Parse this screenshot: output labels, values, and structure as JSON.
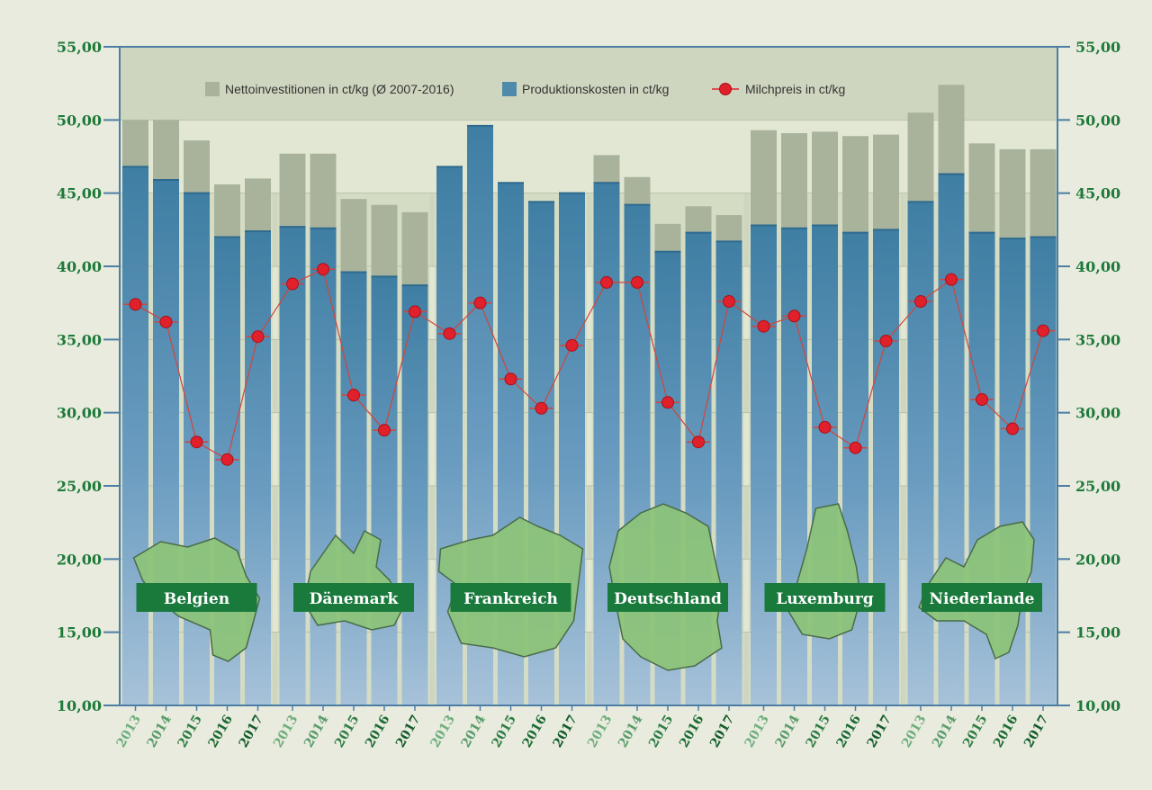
{
  "chart_data": {
    "type": "bar",
    "title": "",
    "xlabel": "",
    "ylabel": "",
    "ylim": [
      10,
      55
    ],
    "yticks": [
      "10,00",
      "15,00",
      "20,00",
      "25,00",
      "30,00",
      "35,00",
      "40,00",
      "45,00",
      "50,00",
      "55,00"
    ],
    "years": [
      "2013",
      "2014",
      "2015",
      "2016",
      "2017"
    ],
    "legend": {
      "placement": "top-left",
      "entries": [
        {
          "key": "netto",
          "label": "Nettoinvestitionen in ct/kg (Ø 2007-2016)",
          "color": "#a9b39c"
        },
        {
          "key": "kosten",
          "label": "Produktionskosten in ct/kg",
          "color": "#4f8aab"
        },
        {
          "key": "milch",
          "label": "Milchpreis in ct/kg",
          "color": "#e0202a"
        }
      ]
    },
    "countries": [
      {
        "name": "Belgien",
        "kosten": [
          46.8,
          45.9,
          45.0,
          42.0,
          42.4
        ],
        "total": [
          50.0,
          50.0,
          48.6,
          45.6,
          46.0
        ],
        "milch": [
          37.4,
          36.2,
          28.0,
          26.8,
          35.2
        ]
      },
      {
        "name": "Dänemark",
        "kosten": [
          42.7,
          42.6,
          39.6,
          39.3,
          38.7
        ],
        "total": [
          47.7,
          47.7,
          44.6,
          44.2,
          43.7
        ],
        "milch": [
          38.8,
          39.8,
          31.2,
          28.8,
          36.9
        ]
      },
      {
        "name": "Frankreich",
        "kosten": [
          46.8,
          49.6,
          45.7,
          44.4,
          45.0
        ],
        "total": [
          46.8,
          49.6,
          45.7,
          44.4,
          45.0
        ],
        "milch": [
          35.4,
          37.5,
          32.3,
          30.3,
          34.6
        ]
      },
      {
        "name": "Deutschland",
        "kosten": [
          45.7,
          44.2,
          41.0,
          42.3,
          41.7
        ],
        "total": [
          47.6,
          46.1,
          42.9,
          44.1,
          43.5
        ],
        "milch": [
          38.9,
          38.9,
          30.7,
          28.0,
          37.6
        ]
      },
      {
        "name": "Luxemburg",
        "kosten": [
          42.8,
          42.6,
          42.8,
          42.3,
          42.5
        ],
        "total": [
          49.3,
          49.1,
          49.2,
          48.9,
          49.0
        ],
        "milch": [
          35.9,
          36.6,
          29.0,
          27.6,
          34.9
        ]
      },
      {
        "name": "Niederlande",
        "kosten": [
          44.4,
          46.3,
          42.3,
          41.9,
          42.0
        ],
        "total": [
          50.5,
          52.4,
          48.4,
          48.0,
          48.0
        ],
        "milch": [
          37.6,
          39.1,
          30.9,
          28.9,
          35.6
        ]
      }
    ],
    "colors": {
      "plot_bg": "#e2e7d3",
      "plot_band": "#cfd6bf",
      "country_panel": "#d5dcc4",
      "axis": "#4d7fa6",
      "tick_text": "#1e7a3a",
      "label_box": "#1a7a3c",
      "map_fill": "#8cc37a",
      "map_stroke": "#4a6b48"
    }
  }
}
